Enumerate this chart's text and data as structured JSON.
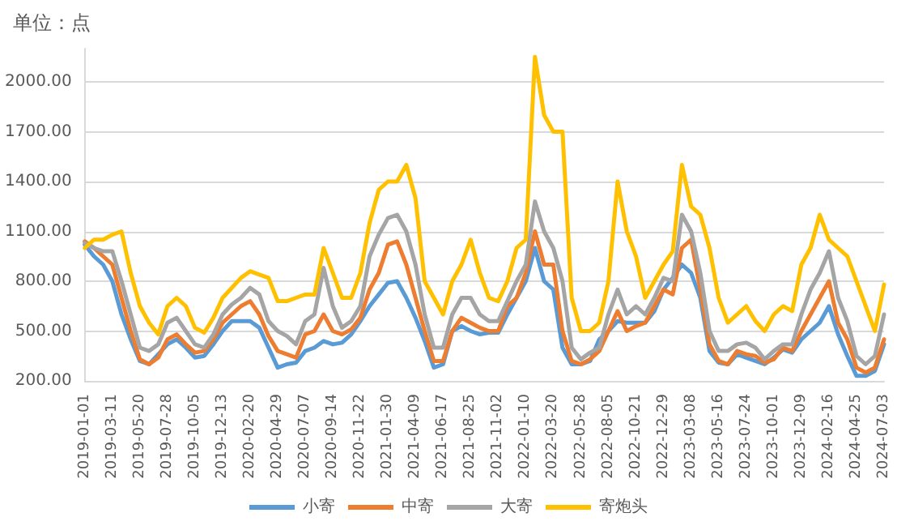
{
  "chart_data": {
    "type": "line",
    "ylabel": "单位：点",
    "categories": [
      "2019-01-01",
      null,
      null,
      "2019-03-11",
      null,
      null,
      "2019-05-20",
      null,
      null,
      "2019-07-28",
      null,
      null,
      "2019-10-05",
      null,
      null,
      "2019-12-13",
      null,
      null,
      "2020-02-20",
      null,
      null,
      "2020-04-29",
      null,
      null,
      "2020-07-07",
      null,
      null,
      "2020-09-14",
      null,
      null,
      "2020-11-22",
      null,
      null,
      "2021-01-30",
      null,
      null,
      "2021-04-09",
      null,
      null,
      "2021-06-17",
      null,
      null,
      "2021-08-25",
      null,
      null,
      "2021-11-02",
      null,
      null,
      "2022-01-10",
      null,
      null,
      "2022-03-20",
      null,
      null,
      "2022-05-28",
      null,
      null,
      "2022-08-05",
      null,
      null,
      "2022-10-21",
      null,
      null,
      "2022-12-29",
      null,
      null,
      "2023-03-08",
      null,
      null,
      "2023-05-16",
      null,
      null,
      "2023-07-24",
      null,
      null,
      "2023-10-01",
      null,
      null,
      "2023-12-09",
      null,
      null,
      "2024-02-16",
      null,
      null,
      "2024-04-25",
      null,
      null,
      "2024-07-03"
    ],
    "series": [
      {
        "name": "小寄",
        "color": "#5b9bd5",
        "values": [
          1020,
          950,
          900,
          800,
          600,
          450,
          320,
          300,
          360,
          420,
          450,
          400,
          340,
          350,
          420,
          500,
          560,
          560,
          560,
          520,
          400,
          280,
          300,
          310,
          380,
          400,
          440,
          420,
          430,
          480,
          560,
          650,
          720,
          790,
          800,
          700,
          580,
          440,
          280,
          300,
          500,
          530,
          500,
          480,
          490,
          490,
          600,
          700,
          800,
          1000,
          800,
          750,
          400,
          300,
          300,
          320,
          450,
          500,
          560,
          550,
          550,
          550,
          620,
          750,
          820,
          900,
          850,
          700,
          380,
          310,
          300,
          360,
          340,
          320,
          300,
          340,
          390,
          370,
          450,
          500,
          550,
          650,
          480,
          350,
          230,
          230,
          260,
          420
        ]
      },
      {
        "name": "中寄",
        "color": "#ed7d31",
        "values": [
          1040,
          1000,
          950,
          900,
          700,
          500,
          330,
          300,
          340,
          450,
          480,
          420,
          370,
          380,
          450,
          550,
          600,
          650,
          680,
          600,
          470,
          380,
          360,
          340,
          480,
          500,
          600,
          500,
          480,
          510,
          580,
          750,
          850,
          1020,
          1040,
          900,
          700,
          500,
          320,
          320,
          500,
          580,
          550,
          520,
          500,
          500,
          650,
          700,
          850,
          1100,
          900,
          900,
          500,
          320,
          300,
          330,
          380,
          500,
          620,
          500,
          530,
          550,
          650,
          750,
          720,
          1000,
          1050,
          750,
          420,
          320,
          300,
          380,
          360,
          350,
          310,
          330,
          400,
          380,
          500,
          600,
          700,
          800,
          550,
          450,
          280,
          250,
          280,
          450
        ]
      },
      {
        "name": "大寄",
        "color": "#a5a5a5",
        "values": [
          1030,
          1000,
          980,
          980,
          800,
          600,
          400,
          380,
          420,
          550,
          580,
          500,
          420,
          400,
          480,
          600,
          660,
          700,
          760,
          720,
          560,
          500,
          470,
          420,
          560,
          600,
          880,
          650,
          520,
          560,
          650,
          950,
          1080,
          1180,
          1200,
          1100,
          900,
          600,
          400,
          400,
          600,
          700,
          700,
          600,
          560,
          560,
          680,
          800,
          900,
          1280,
          1100,
          1000,
          800,
          400,
          330,
          370,
          400,
          600,
          750,
          600,
          650,
          600,
          700,
          820,
          800,
          1200,
          1100,
          850,
          500,
          380,
          380,
          420,
          430,
          400,
          330,
          380,
          420,
          420,
          600,
          750,
          850,
          980,
          700,
          560,
          350,
          300,
          350,
          600
        ]
      },
      {
        "name": "寄炮头",
        "color": "#ffc000",
        "values": [
          1000,
          1050,
          1050,
          1080,
          1100,
          850,
          650,
          550,
          480,
          650,
          700,
          650,
          520,
          490,
          580,
          700,
          760,
          820,
          860,
          840,
          820,
          680,
          680,
          700,
          720,
          720,
          1000,
          850,
          700,
          700,
          850,
          1150,
          1350,
          1400,
          1400,
          1500,
          1300,
          800,
          700,
          600,
          800,
          900,
          1050,
          850,
          700,
          680,
          800,
          1000,
          1050,
          2150,
          1800,
          1700,
          1700,
          700,
          500,
          500,
          550,
          800,
          1400,
          1100,
          950,
          700,
          800,
          900,
          980,
          1500,
          1250,
          1200,
          1000,
          700,
          550,
          600,
          650,
          560,
          500,
          600,
          650,
          620,
          900,
          1000,
          1200,
          1050,
          1000,
          950,
          800,
          650,
          500,
          780
        ]
      }
    ],
    "ylim": [
      200,
      2200
    ],
    "yticks": [
      {
        "value": 200,
        "label": "200.00"
      },
      {
        "value": 500,
        "label": "500.00"
      },
      {
        "value": 800,
        "label": "800.00"
      },
      {
        "value": 1100,
        "label": "1100.00"
      },
      {
        "value": 1400,
        "label": "1400.00"
      },
      {
        "value": 1700,
        "label": "1700.00"
      },
      {
        "value": 2000,
        "label": "2000.00"
      }
    ],
    "grid": "y",
    "legend": "bottom",
    "marker": "none",
    "line_style": "solid"
  }
}
